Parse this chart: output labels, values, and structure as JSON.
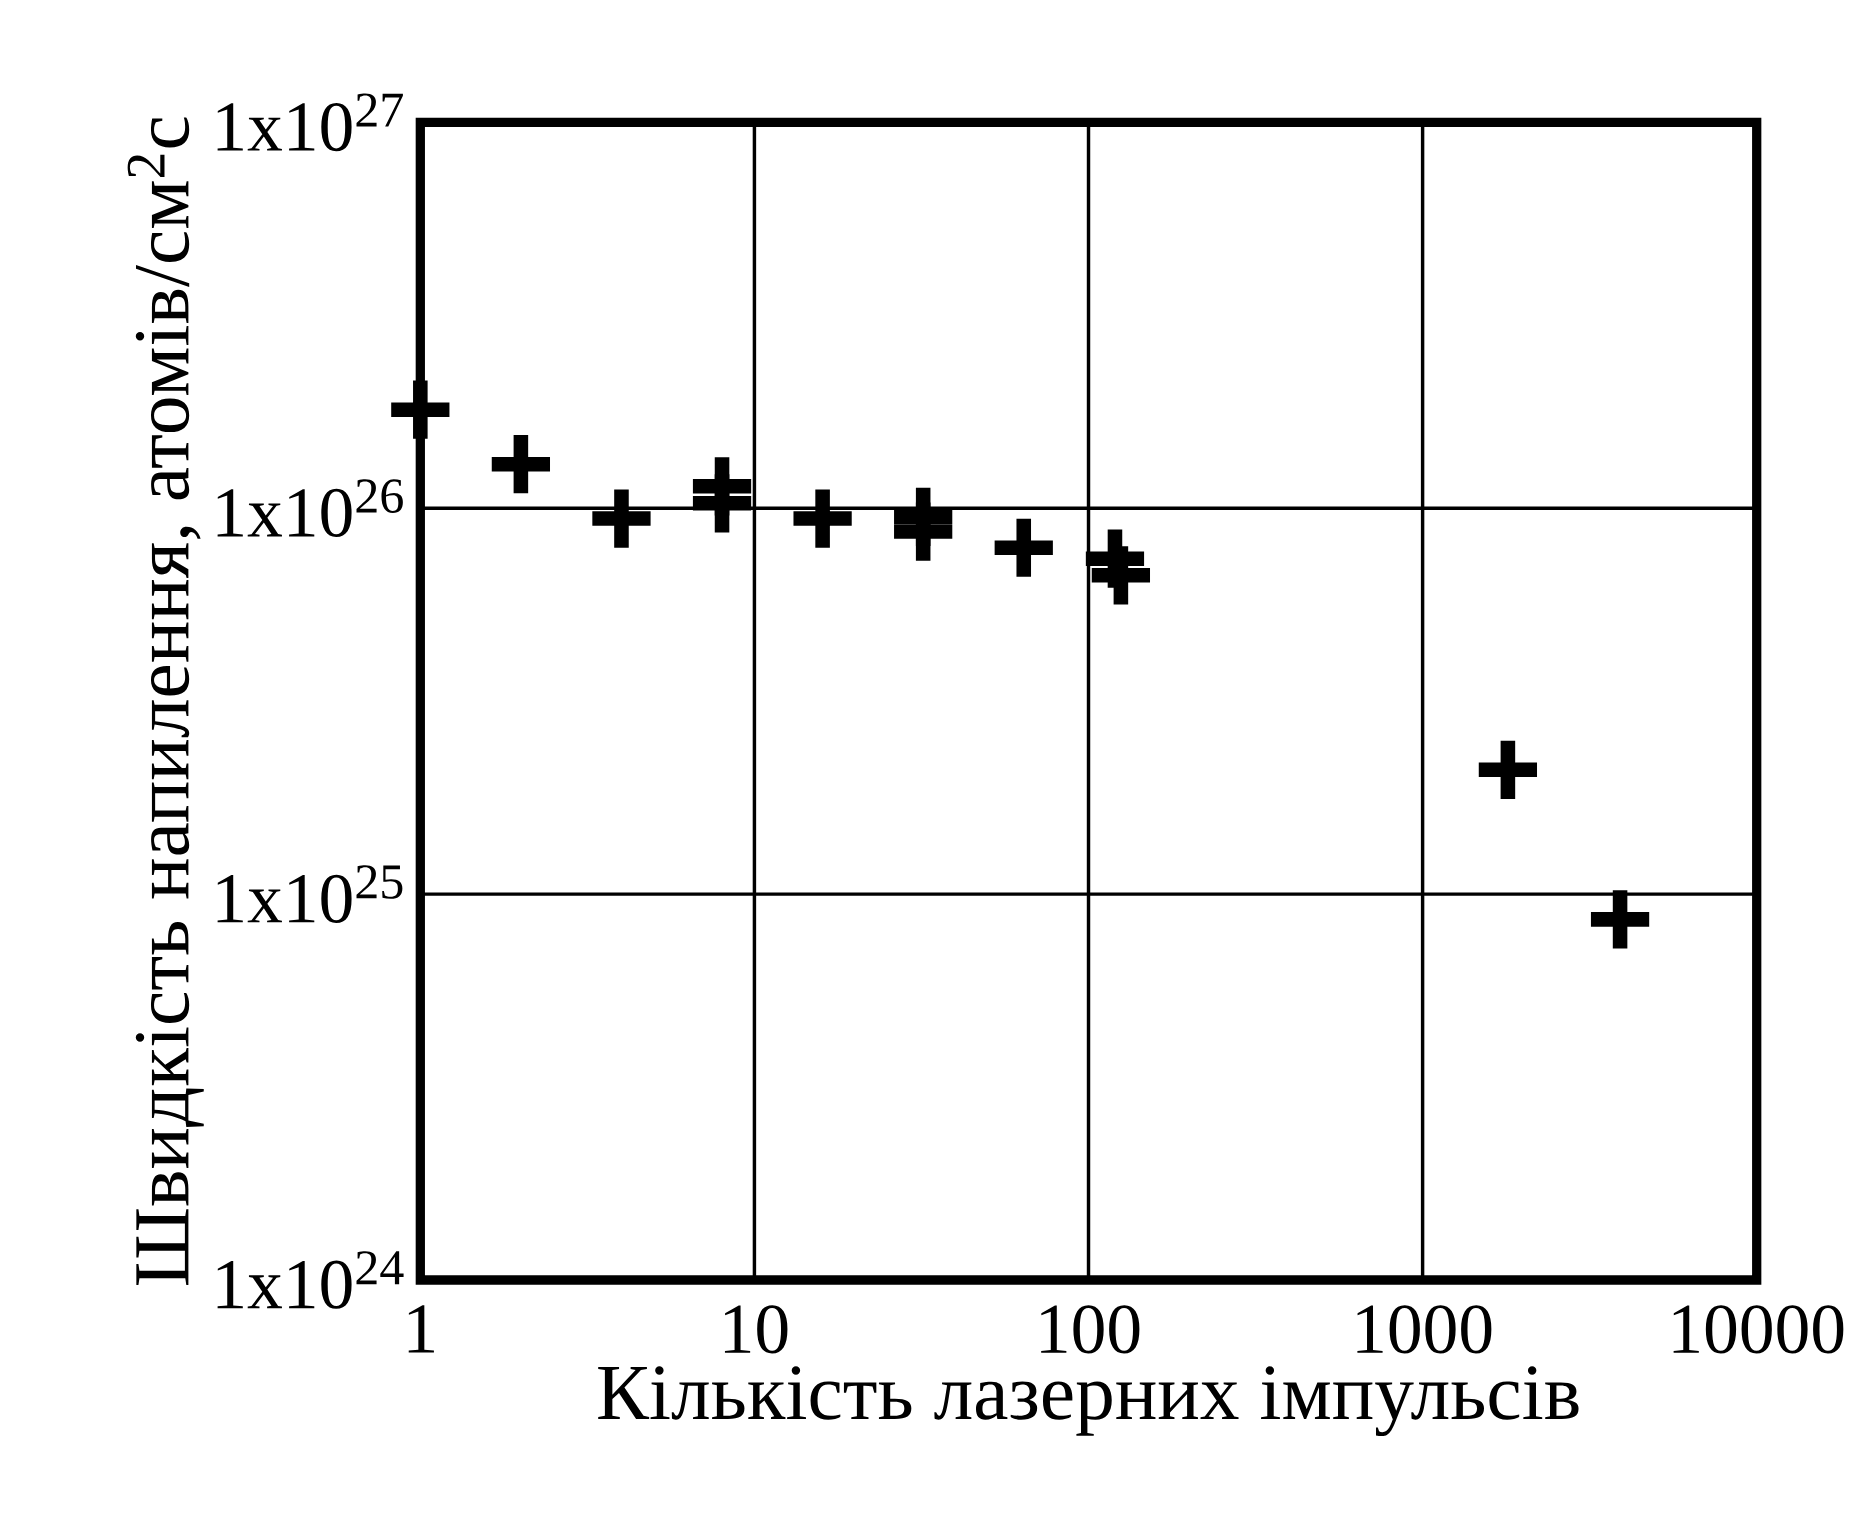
{
  "chart_data": {
    "type": "scatter",
    "xlabel": "Кількість лазерних імпульсів",
    "ylabel": "Швидкість напилення, атомів/см$^{2}$с",
    "log": "xy",
    "grid": true,
    "marker": "cross",
    "color": "#000000",
    "xlim": [
      1,
      10000
    ],
    "ylim": [
      1e+24,
      1e+27
    ],
    "xticks": [
      1,
      10,
      100,
      1000,
      10000
    ],
    "yticks": [
      {
        "value": 1e+24,
        "label": "1x10$^{24}$"
      },
      {
        "value": 1e+25,
        "label": "1x10$^{25}$"
      },
      {
        "value": 1e+26,
        "label": "1x10$^{26}$"
      },
      {
        "value": 1e+27,
        "label": "1x10$^{27}$"
      }
    ],
    "x": [
      1,
      2,
      4,
      8,
      8,
      16,
      32,
      32,
      64,
      120,
      125,
      1800,
      3900
    ],
    "values": [
      1.8e+26,
      1.3e+26,
      9.4e+25,
      1.14e+26,
      1.03e+26,
      9.4e+25,
      9.5e+25,
      8.7e+25,
      7.9e+25,
      7.4e+25,
      6.7e+25,
      2.1e+25,
      8.6e+24
    ]
  }
}
